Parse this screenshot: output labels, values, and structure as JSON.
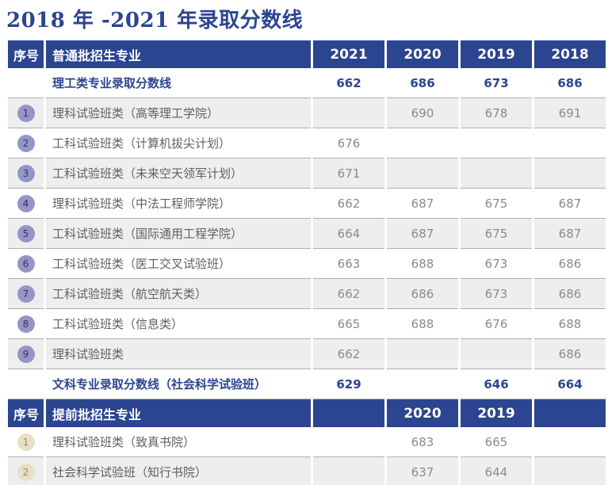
{
  "page_title": "2018 年 -2021 年录取分数线",
  "colors": {
    "primary_blue": "#2b4590",
    "shaded_row": "#eeeeef",
    "row_border": "#aeaeb0",
    "badge_purple": "#9595c8",
    "badge_tan": "#e9dfc4"
  },
  "table1": {
    "header": {
      "col_no": "序号",
      "col_major": "普通批招生专业",
      "years": [
        "2021",
        "2020",
        "2019",
        "2018"
      ]
    },
    "summary_sci": {
      "label": "理工类专业录取分数线",
      "values": [
        "662",
        "686",
        "673",
        "686"
      ]
    },
    "rows": [
      {
        "no": "1",
        "label": "理科试验班类（高等理工学院）",
        "values": [
          "",
          "690",
          "678",
          "691"
        ],
        "shaded": true
      },
      {
        "no": "2",
        "label": "工科试验班类（计算机拔尖计划）",
        "values": [
          "676",
          "",
          "",
          ""
        ],
        "shaded": false
      },
      {
        "no": "3",
        "label": "工科试验班类（未来空天领军计划）",
        "values": [
          "671",
          "",
          "",
          ""
        ],
        "shaded": true
      },
      {
        "no": "4",
        "label": "理科试验班类（中法工程师学院）",
        "values": [
          "662",
          "687",
          "675",
          "687"
        ],
        "shaded": false
      },
      {
        "no": "5",
        "label": "工科试验班类（国际通用工程学院）",
        "values": [
          "664",
          "687",
          "675",
          "687"
        ],
        "shaded": true
      },
      {
        "no": "6",
        "label": "工科试验班类（医工交叉试验班）",
        "values": [
          "663",
          "688",
          "673",
          "686"
        ],
        "shaded": false
      },
      {
        "no": "7",
        "label": "工科试验班类（航空航天类）",
        "values": [
          "662",
          "686",
          "673",
          "686"
        ],
        "shaded": true
      },
      {
        "no": "8",
        "label": "工科试验班类（信息类）",
        "values": [
          "665",
          "688",
          "676",
          "688"
        ],
        "shaded": false
      },
      {
        "no": "9",
        "label": "理科试验班类",
        "values": [
          "662",
          "",
          "",
          "686"
        ],
        "shaded": true
      }
    ],
    "summary_arts": {
      "label": "文科专业录取分数线（社会科学试验班）",
      "values": [
        "629",
        "",
        "646",
        "664"
      ]
    }
  },
  "table2": {
    "header": {
      "col_no": "序号",
      "col_major": "提前批招生专业",
      "years": [
        "",
        "2020",
        "2019",
        ""
      ]
    },
    "rows": [
      {
        "no": "1",
        "label": "理科试验班类（致真书院）",
        "values": [
          "",
          "683",
          "665",
          ""
        ],
        "shaded": false
      },
      {
        "no": "2",
        "label": "社会科学试验班（知行书院）",
        "values": [
          "",
          "637",
          "644",
          ""
        ],
        "shaded": true
      }
    ]
  }
}
